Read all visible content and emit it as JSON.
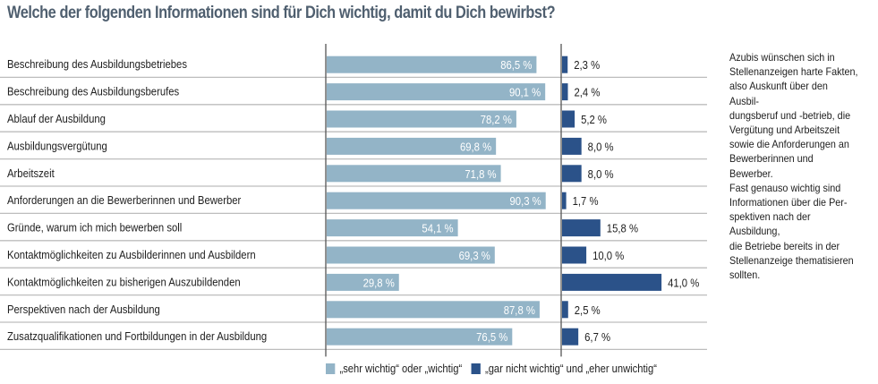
{
  "chart_data": {
    "type": "bar",
    "orientation": "horizontal",
    "title": "Welche der folgenden Informationen sind für Dich wichtig, damit du Dich bewirbst?",
    "xlabel": "",
    "ylabel": "",
    "unit": "%",
    "xlim": [
      0,
      100
    ],
    "grid": false,
    "legend_position": "bottom",
    "categories": [
      "Beschreibung des Ausbildungsbetriebes",
      "Beschreibung des Ausbildungsberufes",
      "Ablauf der Ausbildung",
      "Ausbildungsvergütung",
      "Arbeitszeit",
      "Anforderungen an die Bewerberinnen und Bewerber",
      "Gründe, warum ich mich bewerben soll",
      "Kontaktmöglichkeiten zu Ausbilderinnen und Ausbildern",
      "Kontaktmöglichkeiten zu bisherigen Auszubildenden",
      "Perspektiven nach der Ausbildung",
      "Zusatzqualifikationen und Fortbildungen in der Ausbildung"
    ],
    "series": [
      {
        "name": "„sehr wichtig“ oder „wichtig“",
        "color": "#93b4c7",
        "values": [
          86.5,
          90.1,
          78.2,
          69.8,
          71.8,
          90.3,
          54.1,
          69.3,
          29.8,
          87.8,
          76.5
        ],
        "labels": [
          "86,5 %",
          "90,1 %",
          "78,2 %",
          "69,8 %",
          "71,8 %",
          "90,3 %",
          "54,1 %",
          "69,3 %",
          "29,8 %",
          "87,8 %",
          "76,5 %"
        ]
      },
      {
        "name": "„gar nicht wichtig“ und „eher unwichtig“",
        "color": "#2b5289",
        "values": [
          2.3,
          2.4,
          5.2,
          8.0,
          8.0,
          1.7,
          15.8,
          10.0,
          41.0,
          2.5,
          6.7
        ],
        "labels": [
          "2,3 %",
          "2,4 %",
          "5,2 %",
          "8,0 %",
          "8,0 %",
          "1,7 %",
          "15,8 %",
          "10,0 %",
          "41,0 %",
          "2,5 %",
          "6,7 %"
        ]
      }
    ],
    "annotation": "Azubis wünschen sich in\nStellenanzeigen harte Fakten,\nalso Auskunft über den Ausbil-\ndungsberuf und -betrieb, die\nVergütung und Arbeitszeit\nsowie die Anforderungen an\nBewerberinnen und Bewerber.\nFast genauso wichtig sind\nInformationen über die Per-\nspektiven nach der Ausbildung,\ndie Betriebe bereits in der\nStellenanzeige thematisieren\nsollten."
  },
  "colors": {
    "title": "#4f5f6f",
    "separator": "#bdbdbd",
    "axis": "#555555"
  }
}
